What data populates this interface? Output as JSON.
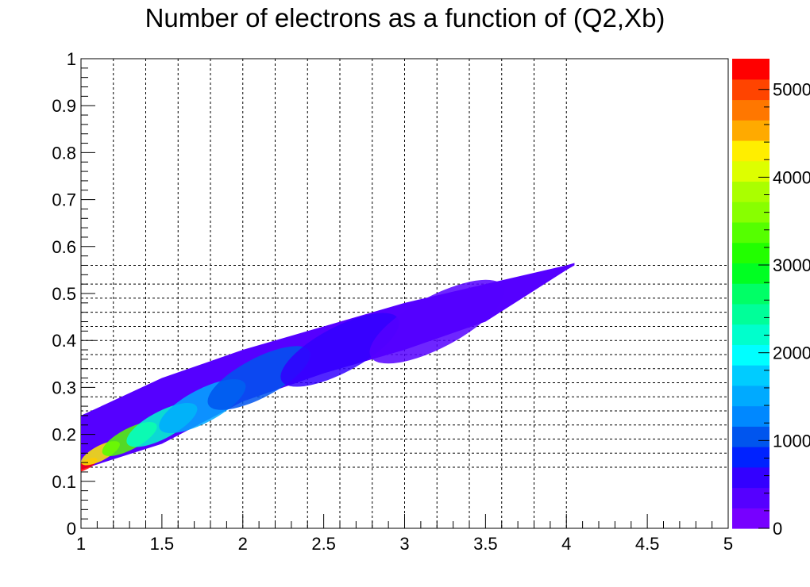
{
  "chart_data": {
    "type": "heatmap",
    "title": "Number of electrons as a function of (Q2,Xb)",
    "xlabel": "",
    "ylabel": "",
    "xlim": [
      1,
      5
    ],
    "ylim": [
      0,
      1
    ],
    "x_ticks": [
      "1",
      "1.5",
      "2",
      "2.5",
      "3",
      "3.5",
      "4",
      "4.5",
      "5"
    ],
    "y_ticks": [
      "0",
      "0.1",
      "0.2",
      "0.3",
      "0.4",
      "0.5",
      "0.6",
      "0.7",
      "0.8",
      "0.9",
      "1"
    ],
    "x_gridlines": [
      1.2,
      1.4,
      1.6,
      1.8,
      2.0,
      2.2,
      2.4,
      2.6,
      2.8,
      3.0,
      3.2,
      3.4,
      3.6,
      3.8,
      4.0
    ],
    "y_gridlines": [
      0.13,
      0.16,
      0.19,
      0.22,
      0.25,
      0.28,
      0.31,
      0.34,
      0.37,
      0.4,
      0.43,
      0.46,
      0.49,
      0.52,
      0.56
    ],
    "grid": "dashed",
    "z_range": [
      0,
      5350
    ],
    "colorbar": {
      "ticks": [
        "0",
        "1000",
        "2000",
        "3000",
        "4000",
        "5000"
      ],
      "colors": [
        "#7700ff",
        "#5500ff",
        "#3300ff",
        "#0022ff",
        "#0055ee",
        "#0088ff",
        "#00aaff",
        "#00ccff",
        "#00ffff",
        "#00ffcc",
        "#00ff99",
        "#00ff66",
        "#00ff22",
        "#22ff00",
        "#55ff00",
        "#88ff00",
        "#aaff00",
        "#ddff00",
        "#ffee00",
        "#ffaa00",
        "#ff7700",
        "#ff4400",
        "#ff0000"
      ]
    },
    "band": {
      "x_points": [
        1.0,
        1.5,
        2.0,
        2.5,
        3.0,
        3.5,
        4.0,
        4.05
      ],
      "y_upper": [
        0.24,
        0.32,
        0.38,
        0.43,
        0.48,
        0.52,
        0.56,
        0.565
      ],
      "y_lower": [
        0.125,
        0.18,
        0.27,
        0.33,
        0.38,
        0.44,
        0.55,
        0.56
      ]
    },
    "hotspots": [
      {
        "x": 1.03,
        "y": 0.135,
        "z": 5300
      },
      {
        "x": 1.12,
        "y": 0.16,
        "z": 4200
      },
      {
        "x": 1.3,
        "y": 0.19,
        "z": 3300
      },
      {
        "x": 1.5,
        "y": 0.22,
        "z": 2200
      },
      {
        "x": 1.75,
        "y": 0.26,
        "z": 1500
      },
      {
        "x": 2.1,
        "y": 0.32,
        "z": 1000
      },
      {
        "x": 2.6,
        "y": 0.38,
        "z": 600
      },
      {
        "x": 3.2,
        "y": 0.44,
        "z": 300
      }
    ]
  }
}
